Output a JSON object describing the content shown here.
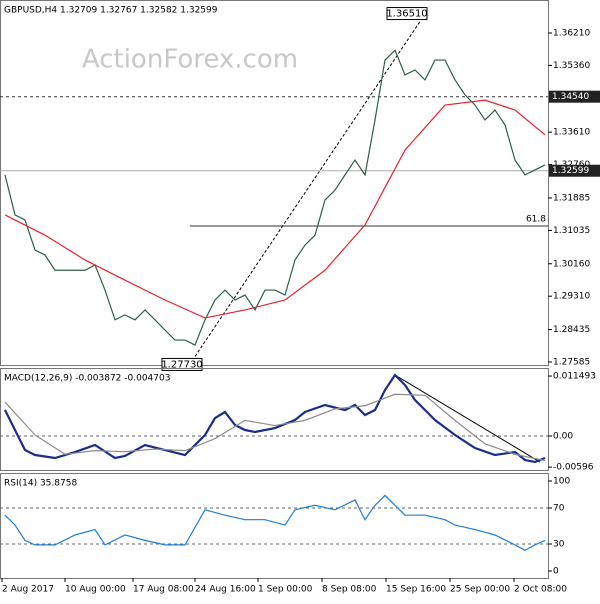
{
  "chart_data": [
    {
      "type": "line",
      "title": "GBPUSD,H4  1.32709 1.32767 1.32582 1.32599",
      "watermark": "ActionForex.com",
      "ylim": [
        1.27506,
        1.37075
      ],
      "yticks": [
        {
          "value": 1.3621,
          "label": "1.36210"
        },
        {
          "value": 1.3536,
          "label": "1.35360"
        },
        {
          "value": 1.3361,
          "label": "1.33610"
        },
        {
          "value": 1.3276,
          "label": "1.32760"
        },
        {
          "value": 1.31885,
          "label": "1.31885"
        },
        {
          "value": 1.31035,
          "label": "1.31035"
        },
        {
          "value": 1.3016,
          "label": "1.30160"
        },
        {
          "value": 1.2931,
          "label": "1.29310"
        },
        {
          "value": 1.28435,
          "label": "1.28435"
        },
        {
          "value": 1.27585,
          "label": "1.27585"
        }
      ],
      "levels": [
        {
          "value": 1.3454,
          "label": "1.34540",
          "style": "dashed",
          "boxed": true
        },
        {
          "value": 1.32599,
          "label": "1.32599",
          "style": "solid",
          "boxed": true
        },
        {
          "value": 1.3115,
          "label": "61.8",
          "style": "fib",
          "from": 18.5
        }
      ],
      "swings": [
        {
          "x": 19,
          "value": 1.2773,
          "label": "1.27730"
        },
        {
          "x": 41.5,
          "value": 1.3651,
          "label": "1.36510"
        }
      ],
      "series": [
        {
          "color": "#2f5f45",
          "x": [
            0,
            1,
            2,
            3,
            4,
            5,
            6,
            7,
            8,
            9,
            10,
            11,
            12,
            13,
            14,
            15,
            16,
            17,
            18,
            19,
            20,
            21,
            22,
            23,
            24,
            25,
            26,
            27,
            28,
            29,
            30,
            31,
            32,
            33,
            34,
            35,
            36,
            37,
            38,
            39,
            40,
            41,
            42,
            43,
            44,
            45,
            46,
            47,
            48,
            49,
            50,
            51,
            52,
            53,
            54
          ],
          "values": [
            1.3249,
            1.3144,
            1.3131,
            1.3052,
            1.3039,
            1.2999,
            1.2999,
            1.2999,
            1.2999,
            1.3013,
            1.2947,
            1.2869,
            1.2882,
            1.2869,
            1.2895,
            1.2869,
            1.2842,
            1.2816,
            1.2816,
            1.2803,
            1.2869,
            1.2921,
            1.2947,
            1.2921,
            1.2934,
            1.2895,
            1.2947,
            1.2947,
            1.2934,
            1.3026,
            1.3065,
            1.3091,
            1.3183,
            1.3209,
            1.3249,
            1.3288,
            1.3249,
            1.3393,
            1.355,
            1.3576,
            1.3511,
            1.3524,
            1.3498,
            1.355,
            1.355,
            1.3498,
            1.3459,
            1.3432,
            1.3393,
            1.3419,
            1.338,
            1.3288,
            1.3249,
            1.3262,
            1.3275
          ]
        },
        {
          "color": "#e8232a",
          "x": [
            0,
            4,
            8,
            12,
            16,
            20,
            24,
            28,
            32,
            36,
            40,
            44,
            48,
            51,
            54
          ],
          "values": [
            1.3144,
            1.3091,
            1.3026,
            1.2973,
            1.2921,
            1.2874,
            1.2895,
            1.2921,
            1.2999,
            1.3118,
            1.3314,
            1.3432,
            1.3445,
            1.3419,
            1.3354
          ]
        }
      ]
    },
    {
      "type": "line",
      "title": "MACD(12,26,9) -0.003872 -0.004703",
      "ylim": [
        -0.00651,
        0.01303
      ],
      "yticks": [
        0.011493,
        {
          "value": 0,
          "label": "0.00"
        },
        -0.00596
      ],
      "ref_lines": [
        0
      ],
      "trend_line": {
        "x": [
          39,
          53.5
        ],
        "values": [
          0.01169,
          -0.00498
        ]
      },
      "series": [
        {
          "color": "#1a2d8c",
          "x": [
            0,
            1,
            2,
            3,
            5,
            7,
            9,
            11,
            12,
            14,
            16,
            18,
            20,
            21,
            22,
            23,
            24,
            25,
            27,
            29,
            30,
            32,
            34,
            35,
            36,
            37,
            38,
            39,
            40,
            41,
            42,
            43,
            45,
            47,
            49,
            51,
            52,
            53,
            54
          ],
          "values": [
            0.00498,
            0.00115,
            -0.00268,
            -0.00364,
            -0.00421,
            -0.00307,
            -0.00172,
            -0.00421,
            -0.00383,
            -0.00172,
            -0.00268,
            -0.00364,
            0.00019,
            0.00345,
            0.0046,
            0.00211,
            0.00115,
            0.00077,
            0.00153,
            0.00307,
            0.0046,
            0.00594,
            0.00498,
            0.00594,
            0.00402,
            0.00498,
            0.00881,
            0.01169,
            0.00977,
            0.0069,
            0.00498,
            0.00307,
            0.00019,
            -0.0023,
            -0.00364,
            -0.00307,
            -0.0046,
            -0.00498,
            -0.00421
          ]
        },
        {
          "color": "#8a8a8a",
          "x": [
            0,
            3,
            6,
            9,
            12,
            15,
            18,
            21,
            24,
            27,
            30,
            33,
            36,
            39,
            42,
            45,
            48,
            51,
            54
          ],
          "values": [
            0.0065,
            0.0002,
            -0.0035,
            -0.0028,
            -0.003,
            -0.0025,
            -0.0028,
            -0.0005,
            0.003,
            0.002,
            0.003,
            0.0052,
            0.0058,
            0.008,
            0.0078,
            0.003,
            -0.0015,
            -0.0035,
            -0.0047
          ]
        }
      ]
    },
    {
      "type": "line",
      "title": "RSI(14) 35.8758",
      "ylim": [
        -7.8,
        108.9
      ],
      "yticks": [
        100,
        70,
        30,
        0
      ],
      "ref_lines": [
        70,
        30
      ],
      "xlim": [
        -0.5,
        54.3
      ],
      "xticks": [
        {
          "value": -0.3,
          "label": "2 Aug 2017"
        },
        {
          "value": 6,
          "label": "10 Aug 00:00"
        },
        {
          "value": 12.8,
          "label": "17 Aug 08:00"
        },
        {
          "value": 19,
          "label": "24 Aug 16:00"
        },
        {
          "value": 25.3,
          "label": "1 Sep 00:00"
        },
        {
          "value": 31.7,
          "label": "8 Sep 08:00"
        },
        {
          "value": 38.1,
          "label": "15 Sep 16:00"
        },
        {
          "value": 44.5,
          "label": "25 Sep 00:00"
        },
        {
          "value": 50.9,
          "label": "2 Oct 08:00"
        }
      ],
      "series": [
        {
          "color": "#1e7fd8",
          "x": [
            0,
            1,
            2,
            3,
            5,
            7,
            9,
            10,
            12,
            14,
            16,
            18,
            20,
            22,
            24,
            26,
            28,
            29,
            31,
            33,
            35,
            36,
            37,
            38,
            39,
            40,
            42,
            44,
            45,
            47,
            49,
            51,
            52,
            53,
            54
          ],
          "values": [
            62,
            51,
            34,
            29,
            29,
            40,
            46,
            29,
            40,
            34,
            29,
            29,
            68,
            62,
            57,
            57,
            51,
            68,
            73,
            68,
            79,
            57,
            73,
            84,
            73,
            62,
            62,
            57,
            51,
            46,
            40,
            29,
            23,
            29,
            34
          ]
        }
      ]
    }
  ]
}
